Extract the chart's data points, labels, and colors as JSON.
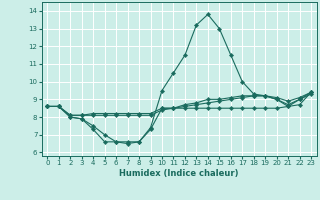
{
  "xlabel": "Humidex (Indice chaleur)",
  "xlim": [
    -0.5,
    23.5
  ],
  "ylim": [
    5.8,
    14.5
  ],
  "yticks": [
    6,
    7,
    8,
    9,
    10,
    11,
    12,
    13,
    14
  ],
  "xticks": [
    0,
    1,
    2,
    3,
    4,
    5,
    6,
    7,
    8,
    9,
    10,
    11,
    12,
    13,
    14,
    15,
    16,
    17,
    18,
    19,
    20,
    21,
    22,
    23
  ],
  "bg_color": "#cceee8",
  "grid_color": "#ffffff",
  "line_color": "#1a6b5e",
  "series": [
    {
      "x": [
        0,
        1,
        2,
        3,
        4,
        5,
        6,
        7,
        8,
        9,
        10,
        11,
        12,
        13,
        14,
        15,
        16,
        17,
        18,
        19,
        20,
        21,
        22,
        23
      ],
      "y": [
        8.6,
        8.6,
        8.0,
        7.9,
        7.3,
        6.6,
        6.6,
        6.5,
        6.6,
        7.3,
        8.5,
        8.5,
        8.5,
        8.5,
        8.5,
        8.5,
        8.5,
        8.5,
        8.5,
        8.5,
        8.5,
        8.6,
        8.7,
        9.4
      ]
    },
    {
      "x": [
        0,
        1,
        2,
        3,
        4,
        5,
        6,
        7,
        8,
        9,
        10,
        11,
        12,
        13,
        14,
        15,
        16,
        17,
        18,
        19,
        20,
        21,
        22,
        23
      ],
      "y": [
        8.6,
        8.6,
        8.1,
        8.1,
        8.1,
        8.1,
        8.1,
        8.1,
        8.1,
        8.1,
        8.4,
        8.5,
        8.6,
        8.7,
        8.8,
        8.9,
        9.0,
        9.1,
        9.2,
        9.2,
        9.0,
        8.7,
        9.0,
        9.3
      ]
    },
    {
      "x": [
        0,
        1,
        2,
        3,
        4,
        5,
        6,
        7,
        8,
        9,
        10,
        11,
        12,
        13,
        14,
        15,
        16,
        17,
        18,
        19,
        20,
        21,
        22,
        23
      ],
      "y": [
        8.6,
        8.6,
        8.1,
        8.1,
        8.2,
        8.2,
        8.2,
        8.2,
        8.2,
        8.2,
        8.5,
        8.5,
        8.7,
        8.8,
        9.0,
        9.0,
        9.1,
        9.2,
        9.2,
        9.2,
        9.1,
        8.9,
        9.1,
        9.4
      ]
    },
    {
      "x": [
        0,
        1,
        2,
        3,
        4,
        5,
        6,
        7,
        8,
        9,
        10,
        11,
        12,
        13,
        14,
        15,
        16,
        17,
        18,
        19,
        20,
        21,
        22,
        23
      ],
      "y": [
        8.6,
        8.6,
        8.0,
        7.9,
        7.5,
        7.0,
        6.6,
        6.6,
        6.6,
        7.4,
        9.5,
        10.5,
        11.5,
        13.2,
        13.8,
        13.0,
        11.5,
        10.0,
        9.3,
        9.2,
        9.0,
        8.6,
        9.0,
        9.4
      ]
    }
  ]
}
